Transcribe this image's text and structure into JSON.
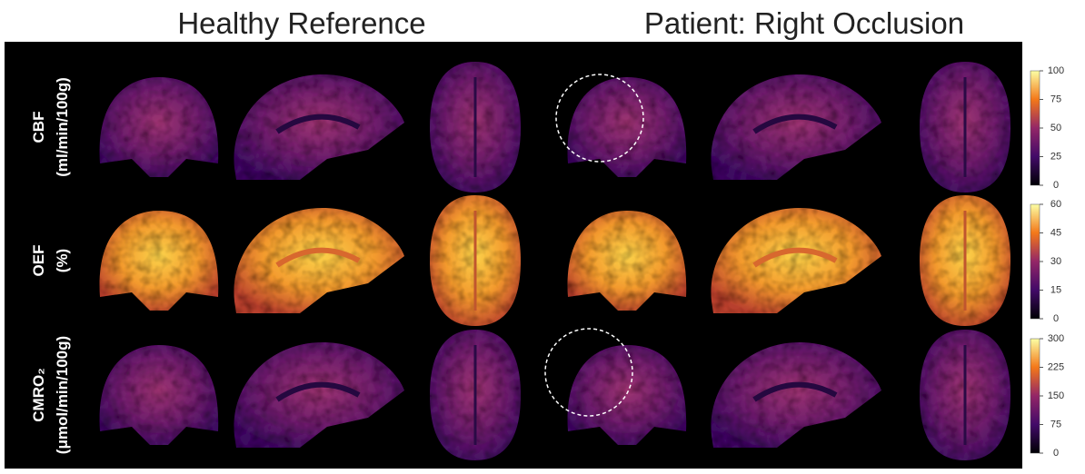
{
  "header": {
    "left_title": "Healthy Reference",
    "right_title": "Patient: Right Occlusion"
  },
  "rows": [
    {
      "label": "CBF",
      "unit": "(ml/min/100g)",
      "colorbar_ticks": [
        100,
        75,
        50,
        25,
        0
      ]
    },
    {
      "label": "OEF",
      "unit": "(%)",
      "colorbar_ticks": [
        60,
        45,
        30,
        15,
        0
      ]
    },
    {
      "label": "CMRO₂",
      "unit": "(μmol/min/100g)",
      "colorbar_ticks": [
        300,
        225,
        150,
        75,
        0
      ]
    }
  ]
}
